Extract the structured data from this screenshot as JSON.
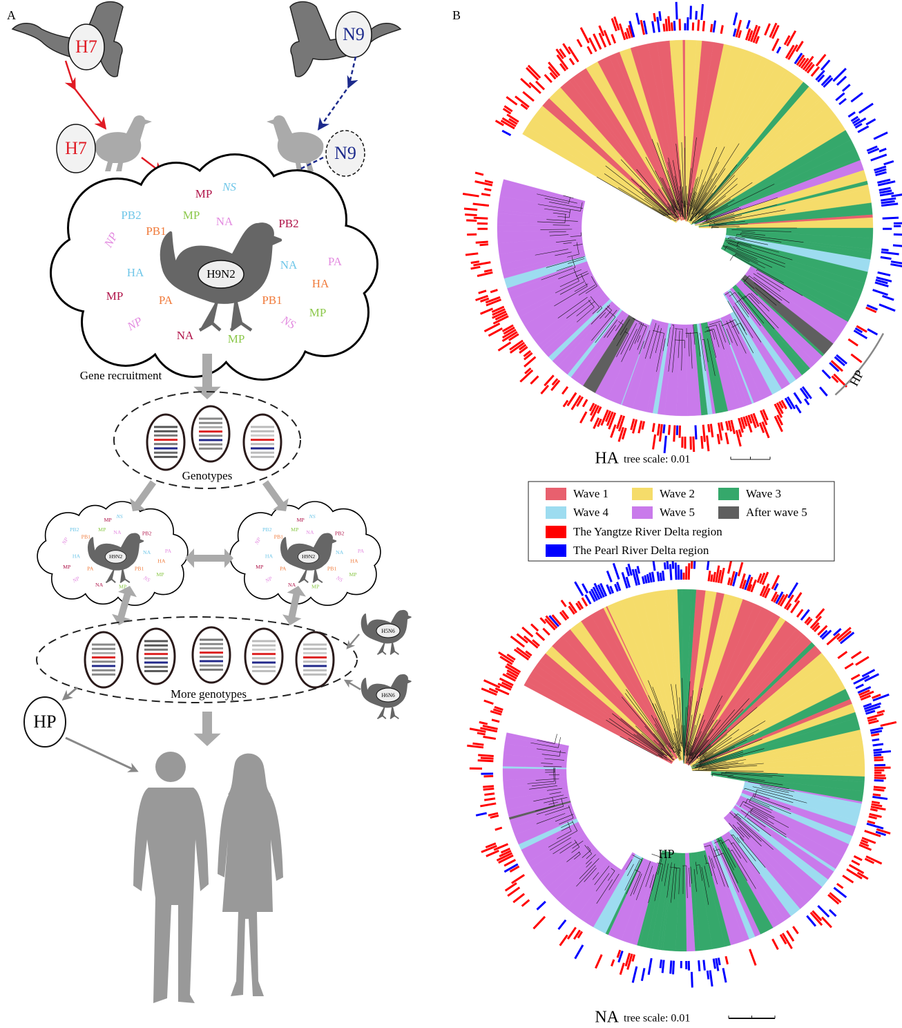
{
  "panel_a": {
    "label": "A",
    "h7_top": "H7",
    "n9_top": "N9",
    "h7_duck": "H7",
    "n9_duck": "N9",
    "cloud": {
      "strain": "H9N2",
      "genes": [
        "MP",
        "NS",
        "PB2",
        "MP",
        "NA",
        "PB2",
        "NP",
        "PB1",
        "NA",
        "PA",
        "HA",
        "HA",
        "MP",
        "PA",
        "PB1",
        "MP",
        "NP",
        "NS",
        "NA",
        "MP"
      ]
    },
    "gene_recruitment": "Gene recruitment",
    "genotypes": "Genotypes",
    "small_clouds": [
      {
        "strain": "H9N2",
        "genes": [
          "MP",
          "NS",
          "PB2",
          "MP",
          "NA",
          "PB2",
          "NP",
          "PB1",
          "NA",
          "PA",
          "HA",
          "HA",
          "MP",
          "PA",
          "PB1",
          "MP",
          "NP",
          "NS",
          "NA",
          "MP"
        ]
      },
      {
        "strain": "H9N2",
        "genes": [
          "MP",
          "NS",
          "PB2",
          "MP",
          "NA",
          "PB2",
          "NP",
          "PB1",
          "NA",
          "PA",
          "HA",
          "HA",
          "MP",
          "PA",
          "PB1",
          "MP",
          "NP",
          "NS",
          "NA",
          "MP"
        ]
      }
    ],
    "more_genotypes": "More genotypes",
    "h5n6": "H5N6",
    "h6n6": "H6N6",
    "hp": "HP"
  },
  "panel_b": {
    "label": "B",
    "trees": [
      {
        "name": "HA",
        "scale": "tree scale: 0.01",
        "hp": "HP"
      },
      {
        "name": "NA",
        "scale": "tree scale: 0.01",
        "hp": "HP"
      }
    ],
    "legend": [
      {
        "label": "Wave 1",
        "color": "#e8606e"
      },
      {
        "label": "Wave 2",
        "color": "#f5dc6a"
      },
      {
        "label": "Wave 3",
        "color": "#35a86b"
      },
      {
        "label": "Wave 4",
        "color": "#9ddcf0"
      },
      {
        "label": "Wave 5",
        "color": "#c97aeb"
      },
      {
        "label": "After wave 5",
        "color": "#5f5f5f"
      },
      {
        "label": "The Yangtze River Delta region",
        "color": "#ff0000"
      },
      {
        "label": "The Pearl River Delta region",
        "color": "#0000ff"
      }
    ]
  }
}
